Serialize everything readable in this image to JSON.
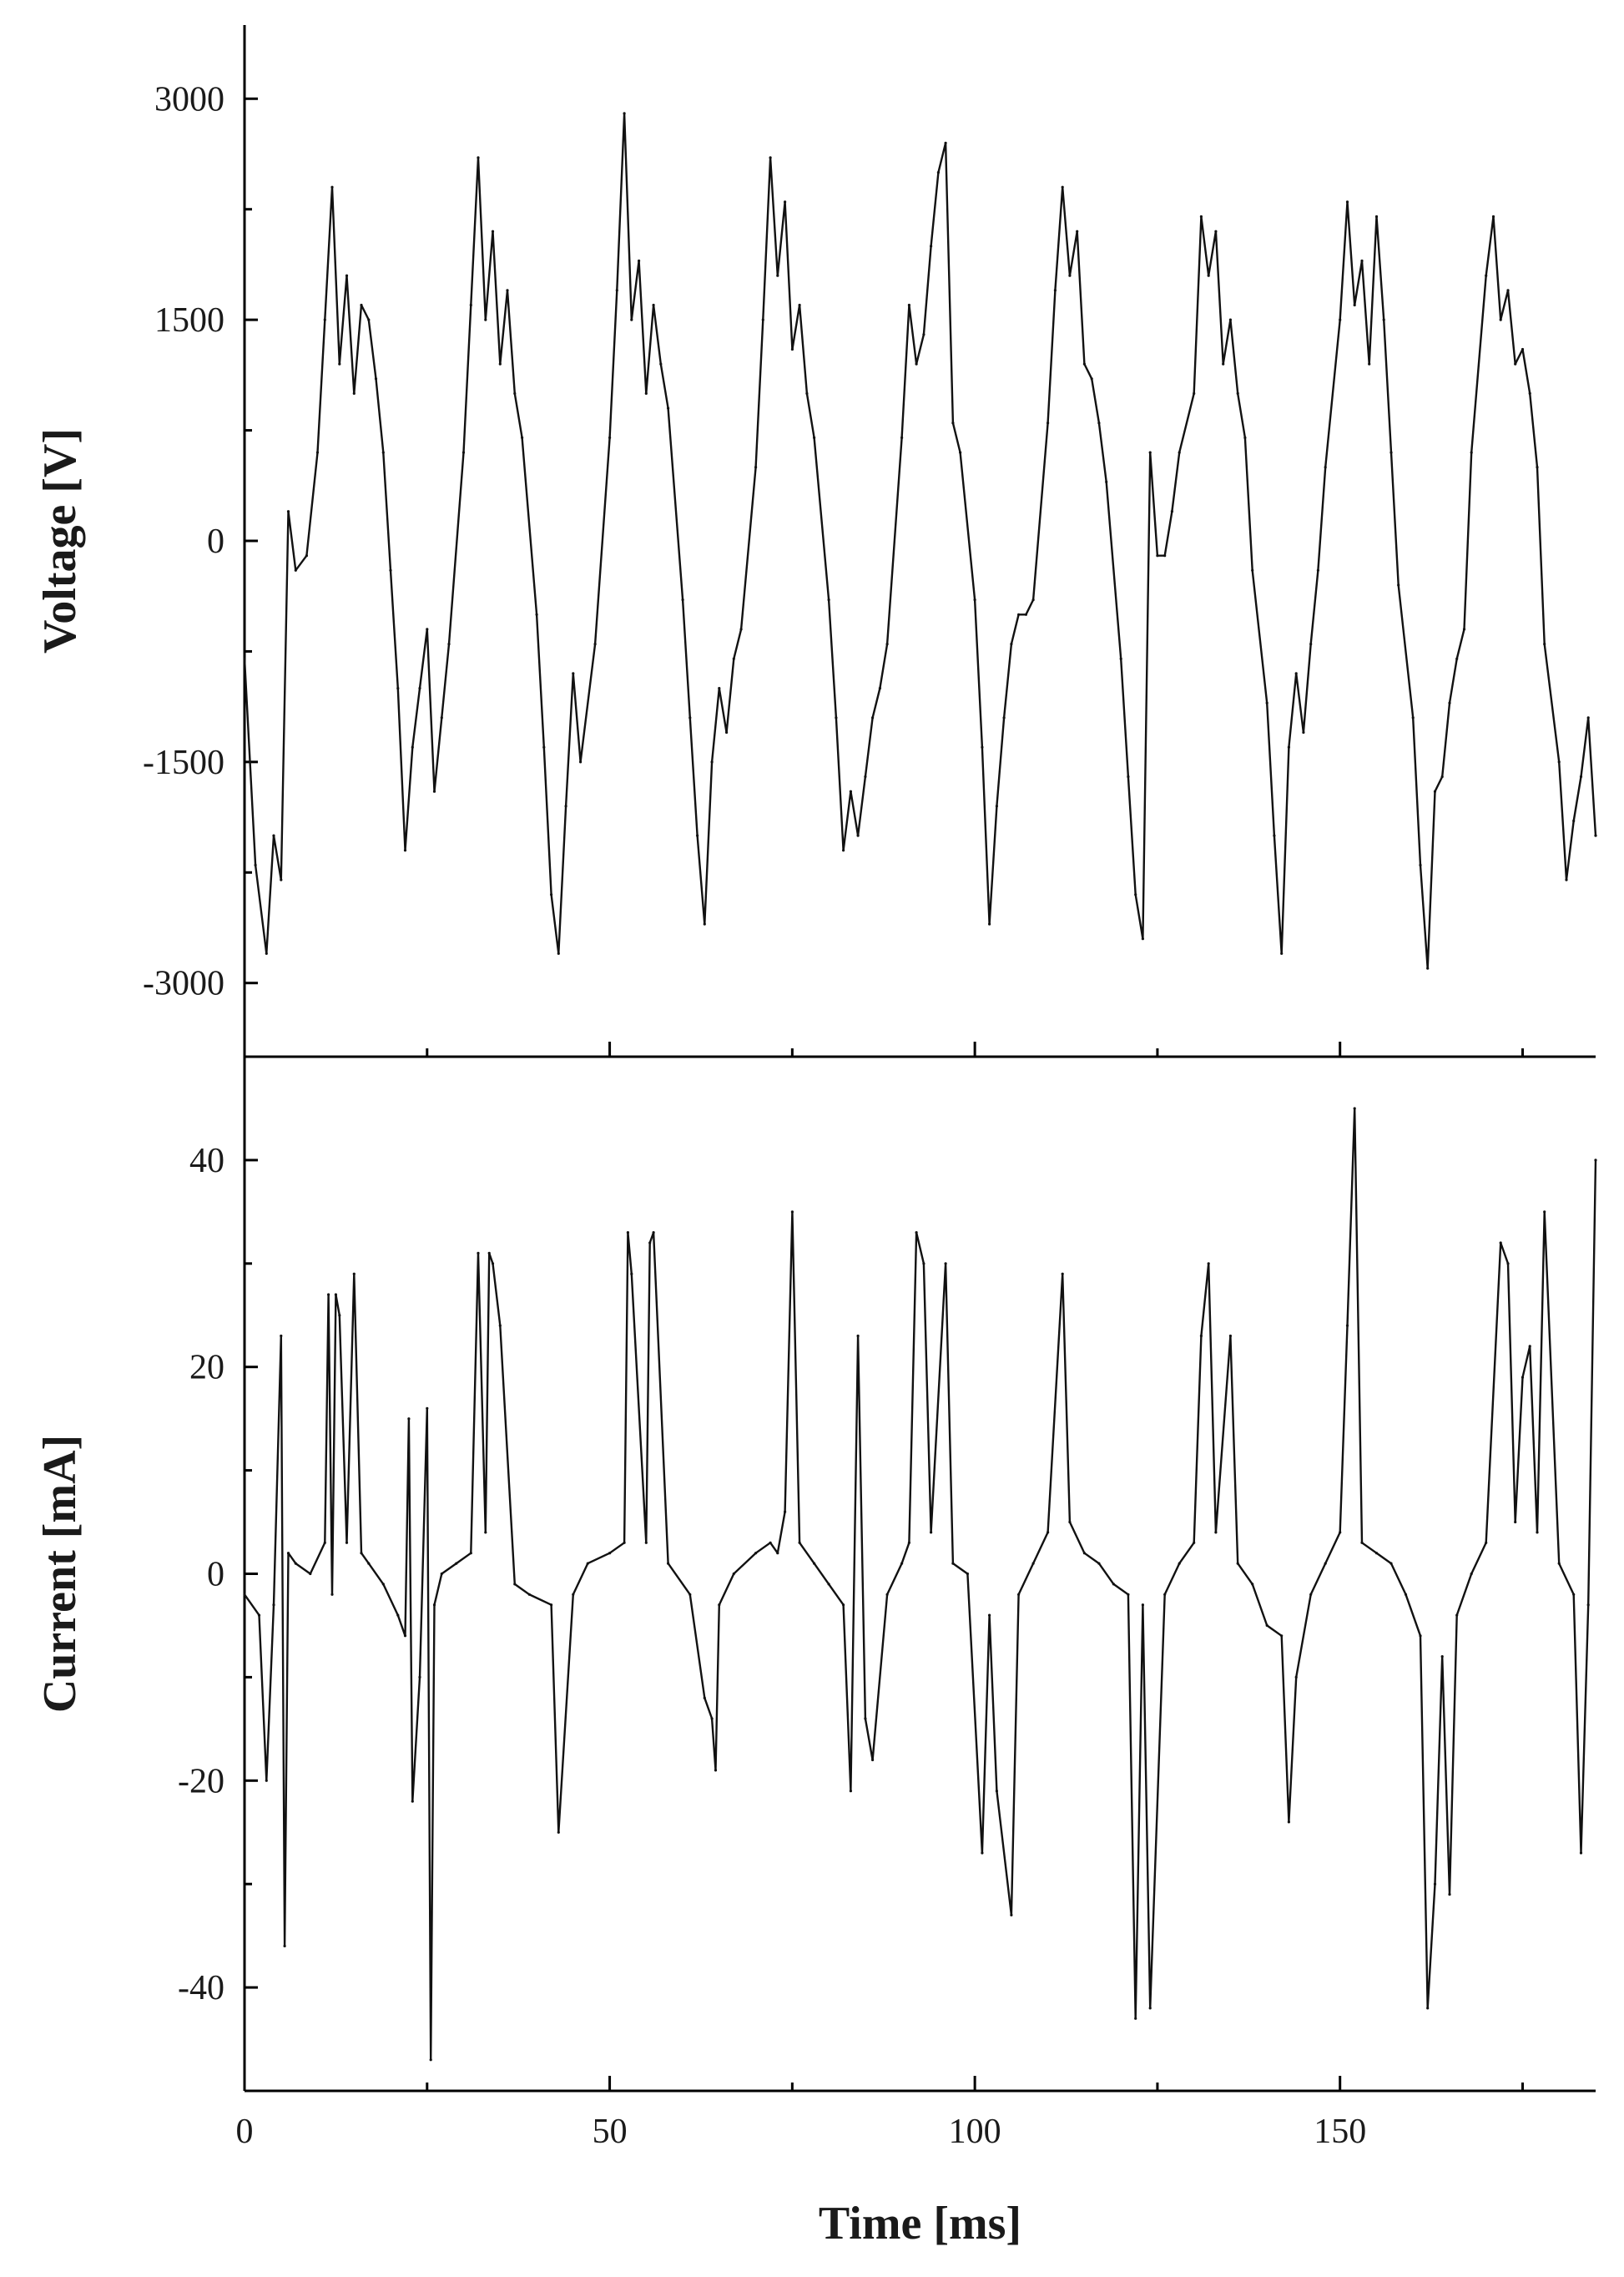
{
  "chart_data": [
    {
      "type": "line",
      "panel": "top",
      "title": "",
      "ylabel": "Voltage [V]",
      "xlim": [
        0,
        185
      ],
      "ylim": [
        -3500,
        3500
      ],
      "yticks": [
        -3000,
        -1500,
        0,
        1500,
        3000
      ],
      "ytick_labels": [
        "-3000",
        "-1500",
        "0",
        "1500",
        "3000"
      ],
      "xticks": [
        0,
        50,
        100,
        150
      ],
      "grid": false,
      "series": [
        {
          "x": [
            0,
            1.5,
            3,
            4,
            5,
            6,
            7,
            8.5,
            10,
            11,
            12,
            13,
            14,
            15,
            16,
            17,
            18,
            19,
            20,
            21,
            22,
            23,
            24,
            25,
            26,
            27,
            28,
            30,
            31,
            32,
            33,
            34,
            35,
            36,
            37,
            38,
            40,
            41,
            42,
            43,
            44,
            45,
            46,
            48,
            50,
            51,
            52,
            53,
            54,
            55,
            56,
            57,
            58,
            60,
            61,
            62,
            63,
            64,
            65,
            66,
            67,
            68,
            70,
            71,
            72,
            73,
            74,
            75,
            76,
            77,
            78,
            80,
            81,
            82,
            83,
            84,
            85,
            86,
            87,
            88,
            90,
            91,
            92,
            93,
            94,
            95,
            96,
            97,
            98,
            100,
            101,
            102,
            103,
            104,
            105,
            106,
            107,
            108,
            110,
            111,
            112,
            113,
            114,
            115,
            116,
            117,
            118,
            120,
            121,
            122,
            123,
            124,
            125,
            126,
            127,
            128,
            130,
            131,
            132,
            133,
            134,
            135,
            136,
            137,
            138,
            140,
            141,
            142,
            143,
            144,
            145,
            146,
            147,
            148,
            150,
            151,
            152,
            153,
            154,
            155,
            156,
            157,
            158,
            160,
            161,
            162,
            163,
            164,
            165,
            166,
            167,
            168,
            170,
            171,
            172,
            173,
            174,
            175,
            176,
            177,
            178,
            180,
            181,
            182,
            183,
            184,
            185
          ],
          "y": [
            -800,
            -2200,
            -2800,
            -2000,
            -2300,
            200,
            -200,
            -100,
            600,
            1500,
            2400,
            1200,
            1800,
            1000,
            1600,
            1500,
            1100,
            600,
            -200,
            -1000,
            -2100,
            -1400,
            -1000,
            -600,
            -1700,
            -1200,
            -700,
            600,
            1600,
            2600,
            1500,
            2100,
            1200,
            1700,
            1000,
            700,
            -500,
            -1400,
            -2400,
            -2800,
            -1800,
            -900,
            -1500,
            -700,
            700,
            1700,
            2900,
            1500,
            1900,
            1000,
            1600,
            1200,
            900,
            -400,
            -1200,
            -2000,
            -2600,
            -1500,
            -1000,
            -1300,
            -800,
            -600,
            500,
            1500,
            2600,
            1800,
            2300,
            1300,
            1600,
            1000,
            700,
            -400,
            -1200,
            -2100,
            -1700,
            -2000,
            -1600,
            -1200,
            -1000,
            -700,
            700,
            1600,
            1200,
            1400,
            2000,
            2500,
            2700,
            800,
            600,
            -400,
            -1400,
            -2600,
            -1800,
            -1200,
            -700,
            -500,
            -500,
            -400,
            800,
            1700,
            2400,
            1800,
            2100,
            1200,
            1100,
            800,
            400,
            -800,
            -1600,
            -2400,
            -2700,
            600,
            -100,
            -100,
            200,
            600,
            1000,
            2200,
            1800,
            2100,
            1200,
            1500,
            1000,
            700,
            -200,
            -1100,
            -2000,
            -2800,
            -1400,
            -900,
            -1300,
            -700,
            -200,
            500,
            1500,
            2300,
            1600,
            1900,
            1200,
            2200,
            1500,
            600,
            -300,
            -1200,
            -2200,
            -2900,
            -1700,
            -1600,
            -1100,
            -800,
            -600,
            600,
            1800,
            2200,
            1500,
            1700,
            1200,
            1300,
            1000,
            500,
            -700,
            -1500,
            -2300,
            -1900,
            -1600,
            -1200,
            -2000
          ]
        }
      ]
    },
    {
      "type": "line",
      "panel": "bottom",
      "title": "",
      "xlabel": "Time [ms]",
      "ylabel": "Current [mA]",
      "xlim": [
        0,
        185
      ],
      "ylim": [
        -50,
        50
      ],
      "yticks": [
        -40,
        -20,
        0,
        20,
        40
      ],
      "ytick_labels": [
        "-40",
        "-20",
        "0",
        "20",
        "40"
      ],
      "xticks": [
        0,
        50,
        100,
        150
      ],
      "xtick_labels": [
        "0",
        "50",
        "100",
        "150"
      ],
      "grid": false,
      "series": [
        {
          "x": [
            0,
            2,
            3,
            4,
            5,
            5.5,
            6,
            7,
            9,
            11,
            11.5,
            12,
            12.5,
            13,
            14,
            15,
            16,
            17,
            19,
            21,
            22,
            22.5,
            23,
            24,
            25,
            25.5,
            26,
            27,
            29,
            31,
            32,
            33,
            33.5,
            34,
            35,
            37,
            39,
            42,
            43,
            45,
            47,
            50,
            52,
            52.5,
            53,
            55,
            55.5,
            56,
            58,
            61,
            63,
            64,
            64.5,
            65,
            67,
            70,
            72,
            73,
            74,
            75,
            76,
            78,
            80,
            82,
            83,
            84,
            85,
            86,
            88,
            90,
            91,
            92,
            93,
            94,
            96,
            97,
            99,
            101,
            102,
            103,
            105,
            106,
            108,
            110,
            112,
            113,
            115,
            117,
            119,
            121,
            122,
            123,
            124,
            126,
            128,
            130,
            131,
            132,
            133,
            135,
            136,
            138,
            140,
            142,
            143,
            144,
            146,
            148,
            150,
            151,
            152,
            153,
            155,
            157,
            159,
            161,
            162,
            163,
            164,
            165,
            166,
            168,
            170,
            172,
            173,
            174,
            175,
            176,
            177,
            178,
            180,
            182,
            183,
            184,
            185
          ],
          "y": [
            -2,
            -4,
            -20,
            -3,
            23,
            -36,
            2,
            1,
            0,
            3,
            27,
            -2,
            27,
            25,
            3,
            29,
            2,
            1,
            -1,
            -4,
            -6,
            15,
            -22,
            -10,
            16,
            -47,
            -3,
            0,
            1,
            2,
            31,
            4,
            31,
            30,
            24,
            -1,
            -2,
            -3,
            -25,
            -2,
            1,
            2,
            3,
            33,
            29,
            3,
            32,
            33,
            1,
            -2,
            -12,
            -14,
            -19,
            -3,
            0,
            2,
            3,
            2,
            6,
            35,
            3,
            1,
            -1,
            -3,
            -21,
            23,
            -14,
            -18,
            -2,
            1,
            3,
            33,
            30,
            4,
            30,
            1,
            0,
            -27,
            -4,
            -21,
            -33,
            -2,
            1,
            4,
            29,
            5,
            2,
            1,
            -1,
            -2,
            -43,
            -3,
            -42,
            -2,
            1,
            3,
            23,
            30,
            4,
            23,
            1,
            -1,
            -5,
            -6,
            -24,
            -10,
            -2,
            1,
            4,
            24,
            45,
            3,
            2,
            1,
            -2,
            -6,
            -42,
            -30,
            -8,
            -31,
            -4,
            0,
            3,
            32,
            30,
            5,
            19,
            22,
            4,
            35,
            1,
            -2,
            -27,
            -3,
            40
          ]
        }
      ]
    }
  ]
}
